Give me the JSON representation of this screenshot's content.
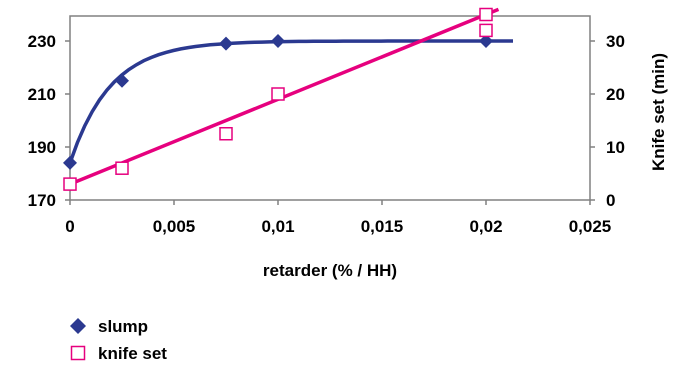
{
  "chart_data": {
    "type": "scatter",
    "title": "",
    "xlabel": "retarder (% / HH)",
    "ylabel_left": "",
    "ylabel_right": "Knife set (min)",
    "xlim": [
      0,
      0.025
    ],
    "ylim_left": [
      170,
      230
    ],
    "ylim_right": [
      0,
      30
    ],
    "x_ticks": [
      "0",
      "0,005",
      "0,01",
      "0,015",
      "0,02",
      "0,025"
    ],
    "x_tick_values": [
      0,
      0.005,
      0.01,
      0.015,
      0.02,
      0.025
    ],
    "y_left_ticks": [
      "170",
      "190",
      "210",
      "230"
    ],
    "y_left_tick_values": [
      170,
      190,
      210,
      230
    ],
    "y_right_ticks": [
      "0",
      "10",
      "20",
      "30"
    ],
    "y_right_tick_values": [
      0,
      10,
      20,
      30
    ],
    "grid": false,
    "legend_position": "bottom-left",
    "series": [
      {
        "name": "slump",
        "axis": "left",
        "marker": "diamond",
        "color": "#2B3990",
        "x": [
          0,
          0.0025,
          0.0075,
          0.01,
          0.02
        ],
        "y": [
          184,
          215,
          229,
          230,
          230
        ],
        "trendline": "smooth curve to x 0.0213"
      },
      {
        "name": "knife set",
        "axis": "right",
        "marker": "square-open",
        "color": "#E6007E",
        "x": [
          0,
          0.0025,
          0.0075,
          0.01,
          0.02,
          0.02
        ],
        "y": [
          3,
          6,
          12.5,
          20,
          35,
          32
        ],
        "trendline": "linear, y = 1.6x10^3 * x + 3, to x 0.0206"
      }
    ]
  }
}
